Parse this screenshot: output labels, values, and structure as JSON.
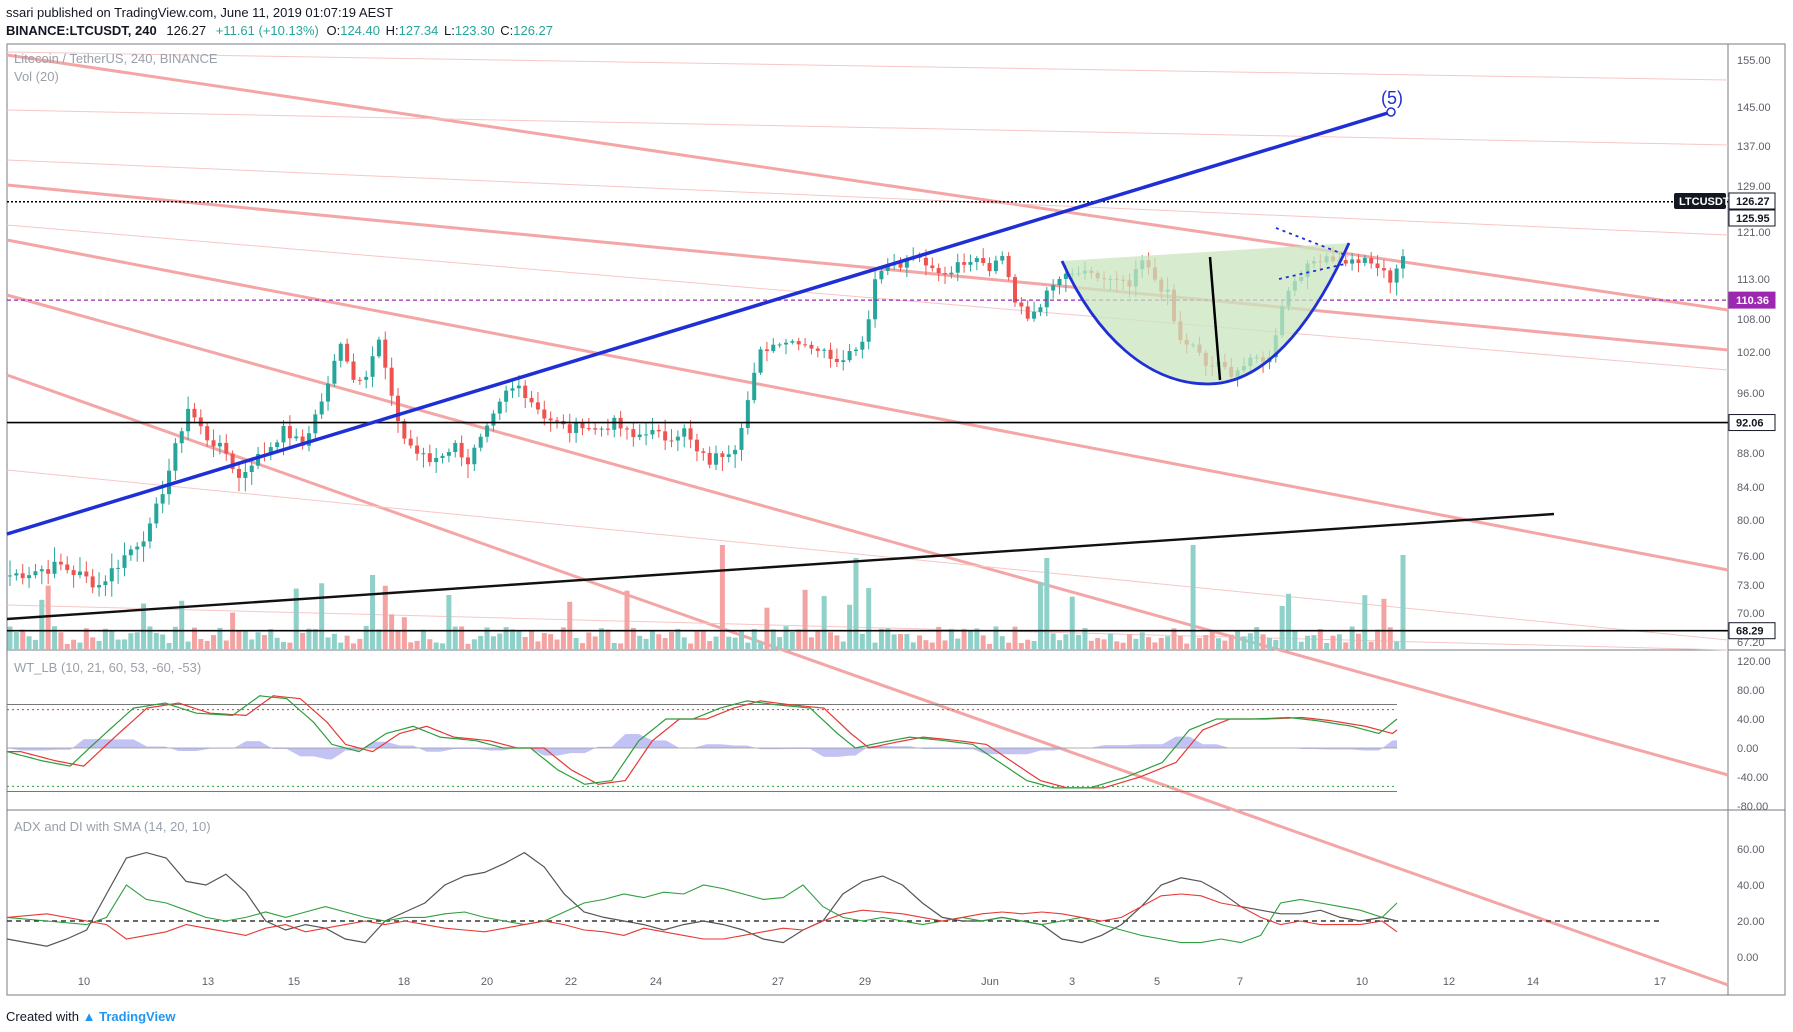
{
  "header": {
    "published_line": "ssari published on TradingView.com, June 11, 2019 01:07:19 AEST",
    "symbol": "BINANCE:LTCUSDT, 240",
    "last": "126.27",
    "change": "+11.61 (+10.13%)",
    "o_label": "O:",
    "o": "124.40",
    "h_label": "H:",
    "h": "127.34",
    "l_label": "L:",
    "l": "123.30",
    "c_label": "C:",
    "c": "126.27"
  },
  "panes": {
    "main_title": "Litecoin / TetherUS, 240, BINANCE",
    "vol_title": "Vol (20)",
    "wt_title": "WT_LB (10, 21, 60, 53, -60, -53)",
    "adx_title": "ADX and DI with SMA (14, 20, 10)"
  },
  "footer": {
    "created_with": "Created with",
    "brand": "TradingView"
  },
  "colors": {
    "up": "#26a69a",
    "down": "#ef5350",
    "vol_up": "#8fd1c8",
    "vol_down": "#f4a3a3",
    "trend_blue": "#1f2fd6",
    "channel": "#f4a6a6",
    "purple": "#9c27b0",
    "cup_fill": "#c9e5bf",
    "wt_green": "#2e9e3e",
    "wt_red": "#e53935",
    "wt_area": "#b3b3f2",
    "adx_gray": "#555555"
  },
  "chart_data": {
    "type": "candlestick",
    "symbol": "LTCUSDT",
    "price_axis_ticks": [
      "155.00",
      "145.00",
      "137.00",
      "129.00",
      "121.00",
      "113.00",
      "108.00",
      "102.00",
      "96.00",
      "88.00",
      "84.00",
      "80.00",
      "76.00",
      "73.00",
      "70.00",
      "67.20"
    ],
    "price_labels": [
      {
        "text": "LTCUSDT",
        "value": 126.27,
        "style": "dark"
      },
      {
        "text": "126.27",
        "value": 126.27,
        "style": "white"
      },
      {
        "text": "125.95",
        "value": 125.95,
        "style": "white"
      },
      {
        "text": "110.36",
        "value": 110.36,
        "style": "purple"
      },
      {
        "text": "92.06",
        "value": 92.06,
        "style": "white"
      },
      {
        "text": "68.29",
        "value": 68.29,
        "style": "white"
      }
    ],
    "horizontal_lines": [
      {
        "value": 126.27,
        "style": "dotted-black"
      },
      {
        "value": 110.36,
        "style": "dashed-purple"
      },
      {
        "value": 92.06,
        "style": "solid-black"
      },
      {
        "value": 68.29,
        "style": "solid-black"
      }
    ],
    "wave_label": "(5)",
    "date_ticks": [
      "10",
      "13",
      "15",
      "18",
      "20",
      "22",
      "24",
      "27",
      "29",
      "Jun",
      "3",
      "5",
      "7",
      "10",
      "12",
      "14",
      "17"
    ],
    "candles_count": 220,
    "candles_start_date": "2019-05-08",
    "volume_series_note": "Vol (20)",
    "wt_axis_ticks": [
      "120.00",
      "80.00",
      "40.00",
      "0.00",
      "-40.00",
      "-80.00"
    ],
    "wt_levels": [
      53,
      60,
      -53,
      -60
    ],
    "adx_axis_ticks": [
      "60.00",
      "40.00",
      "20.00",
      "0.00"
    ],
    "adx_threshold": 20
  }
}
